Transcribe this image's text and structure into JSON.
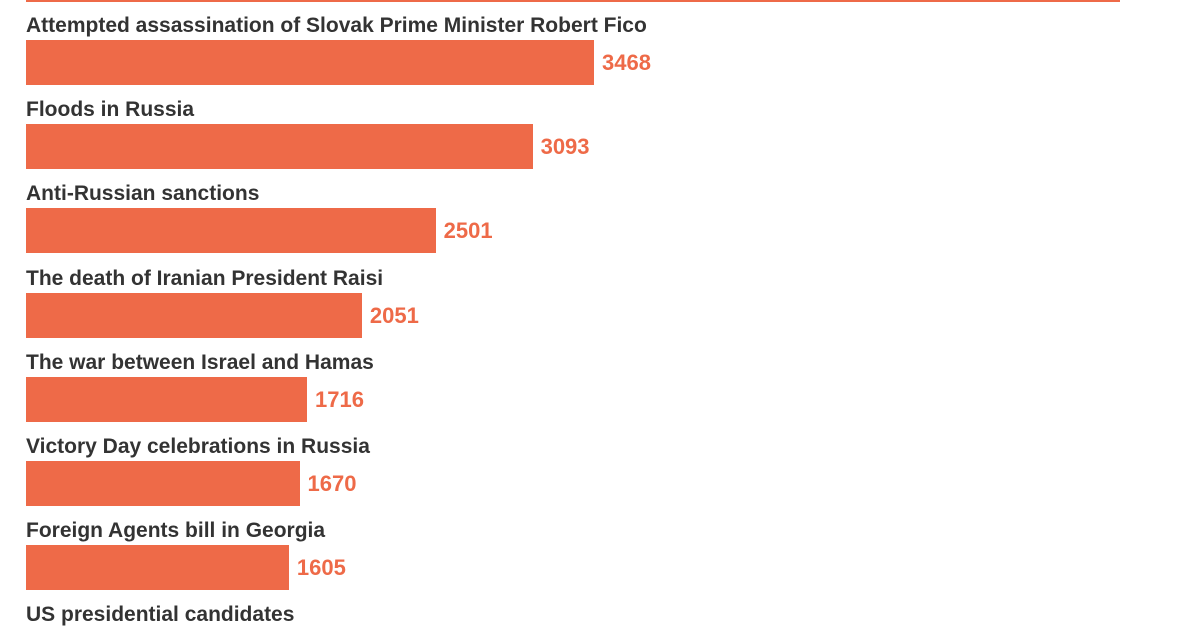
{
  "chart_data": {
    "type": "bar",
    "orientation": "horizontal",
    "categories": [
      "Attempted assassination of Slovak Prime Minister Robert Fico",
      "Floods in Russia",
      "Anti-Russian sanctions",
      "The death of Iranian President Raisi",
      "The war between Israel and Hamas",
      "Victory Day celebrations in Russia",
      "Foreign Agents bill in Georgia",
      "US presidential candidates"
    ],
    "values": [
      3468,
      3093,
      2501,
      2051,
      1716,
      1670,
      1605,
      null
    ],
    "grid": false,
    "legend": "none"
  },
  "colors": {
    "bar": "#ee6a48",
    "value_text": "#ee6a48",
    "label_text": "#333333",
    "rule": "#ee6a48"
  }
}
